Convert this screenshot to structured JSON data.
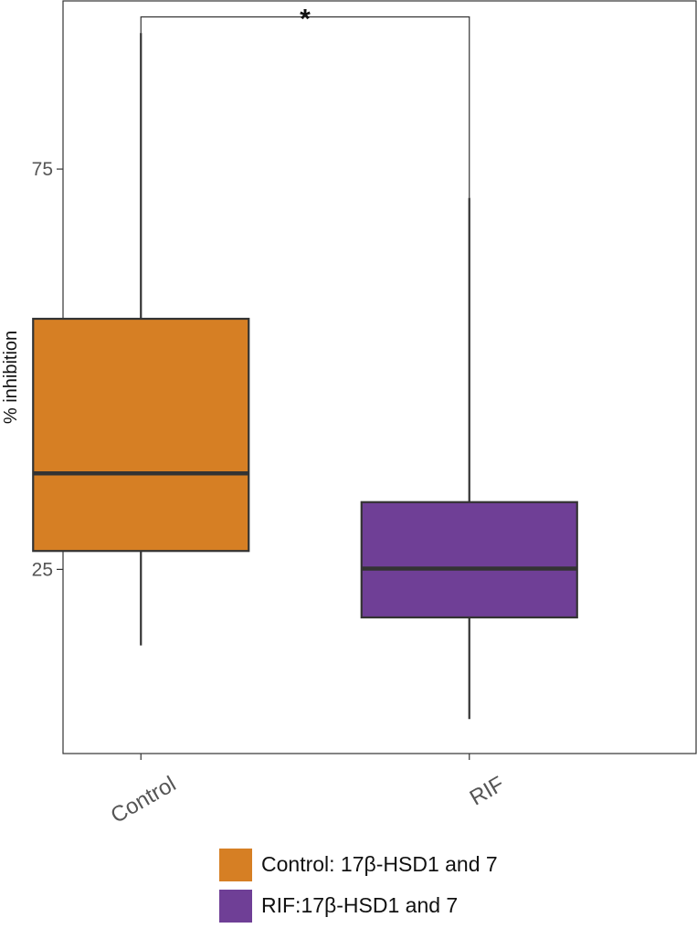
{
  "chart_data": {
    "type": "box",
    "ylabel": "% inhibition",
    "xlabel": "",
    "ylim": [
      2,
      96
    ],
    "yticks": [
      25,
      50,
      75
    ],
    "categories": [
      "Control",
      "RIF"
    ],
    "boxes": [
      {
        "category": "Control",
        "min": 15.5,
        "q1": 27.3,
        "median": 37.0,
        "q3": 56.3,
        "max": 92.0,
        "color": "#d67f24"
      },
      {
        "category": "RIF",
        "min": 6.3,
        "q1": 19.0,
        "median": 25.1,
        "q3": 33.4,
        "max": 71.4,
        "color": "#6f3f96"
      }
    ],
    "significance": {
      "label": "*",
      "between": [
        "Control",
        "RIF"
      ],
      "left_top": 92.0,
      "right_top": 71.4,
      "y": 94.0
    },
    "legend": [
      {
        "label": "Control: 17β-HSD1 and 7",
        "color": "#d67f24"
      },
      {
        "label": "RIF:17β-HSD1 and 7",
        "color": "#6f3f96"
      }
    ],
    "grid": false,
    "legend_position": "bottom"
  }
}
